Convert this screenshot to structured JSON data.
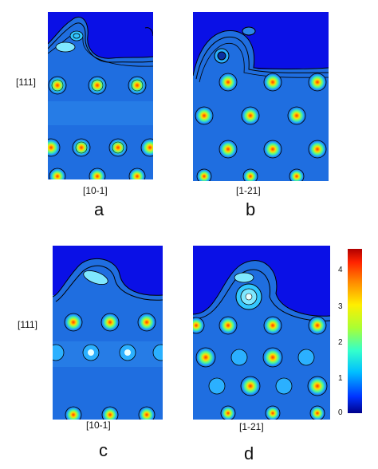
{
  "panels": [
    {
      "id": "a",
      "letter": "a",
      "xlabel": "[10-1]",
      "ylabel": "[111]"
    },
    {
      "id": "b",
      "letter": "b",
      "xlabel": "[1-21]",
      "ylabel": ""
    },
    {
      "id": "c",
      "letter": "c",
      "xlabel": "[10-1]",
      "ylabel": "[111]"
    },
    {
      "id": "d",
      "letter": "d",
      "xlabel": "[1-21]",
      "ylabel": ""
    }
  ],
  "colorbar": {
    "ticks": [
      "4",
      "3",
      "2",
      "1",
      "0"
    ],
    "range": [
      0,
      4.6
    ],
    "colors": [
      "#00008b",
      "#0033ff",
      "#00bfff",
      "#33ffcc",
      "#aaff33",
      "#ffee00",
      "#ff8800",
      "#ff2200",
      "#b00000"
    ]
  }
}
